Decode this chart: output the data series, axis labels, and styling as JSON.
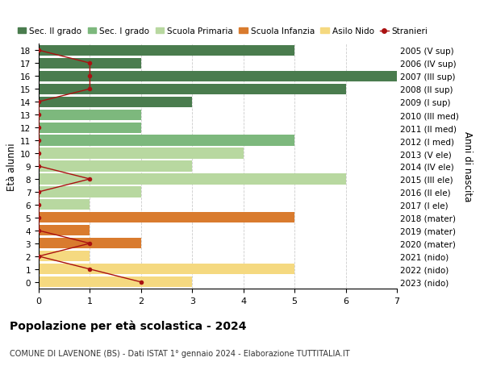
{
  "ages": [
    18,
    17,
    16,
    15,
    14,
    13,
    12,
    11,
    10,
    9,
    8,
    7,
    6,
    5,
    4,
    3,
    2,
    1,
    0
  ],
  "right_labels": [
    "2005 (V sup)",
    "2006 (IV sup)",
    "2007 (III sup)",
    "2008 (II sup)",
    "2009 (I sup)",
    "2010 (III med)",
    "2011 (II med)",
    "2012 (I med)",
    "2013 (V ele)",
    "2014 (IV ele)",
    "2015 (III ele)",
    "2016 (II ele)",
    "2017 (I ele)",
    "2018 (mater)",
    "2019 (mater)",
    "2020 (mater)",
    "2021 (nido)",
    "2022 (nido)",
    "2023 (nido)"
  ],
  "bar_values": [
    5,
    2,
    7,
    6,
    3,
    2,
    2,
    5,
    4,
    3,
    6,
    2,
    1,
    5,
    1,
    2,
    1,
    5,
    3
  ],
  "bar_colors": [
    "#4a7c4e",
    "#4a7c4e",
    "#4a7c4e",
    "#4a7c4e",
    "#4a7c4e",
    "#7db87d",
    "#7db87d",
    "#7db87d",
    "#b8d8a0",
    "#b8d8a0",
    "#b8d8a0",
    "#b8d8a0",
    "#b8d8a0",
    "#d97b2e",
    "#d97b2e",
    "#d97b2e",
    "#f5d980",
    "#f5d980",
    "#f5d980"
  ],
  "stranieri_values": [
    0,
    1,
    1,
    1,
    0,
    0,
    0,
    0,
    0,
    0,
    1,
    0,
    0,
    0,
    0,
    1,
    0,
    1,
    2
  ],
  "legend_labels": [
    "Sec. II grado",
    "Sec. I grado",
    "Scuola Primaria",
    "Scuola Infanzia",
    "Asilo Nido",
    "Stranieri"
  ],
  "legend_colors": [
    "#4a7c4e",
    "#7db87d",
    "#b8d8a0",
    "#d97b2e",
    "#f5d980",
    "#aa1111"
  ],
  "title": "Popolazione per età scolastica - 2024",
  "subtitle": "COMUNE DI LAVENONE (BS) - Dati ISTAT 1° gennaio 2024 - Elaborazione TUTTITALIA.IT",
  "ylabel": "Età alunni",
  "right_ylabel": "Anni di nascita",
  "xlim": [
    0,
    7
  ],
  "background_color": "#ffffff"
}
